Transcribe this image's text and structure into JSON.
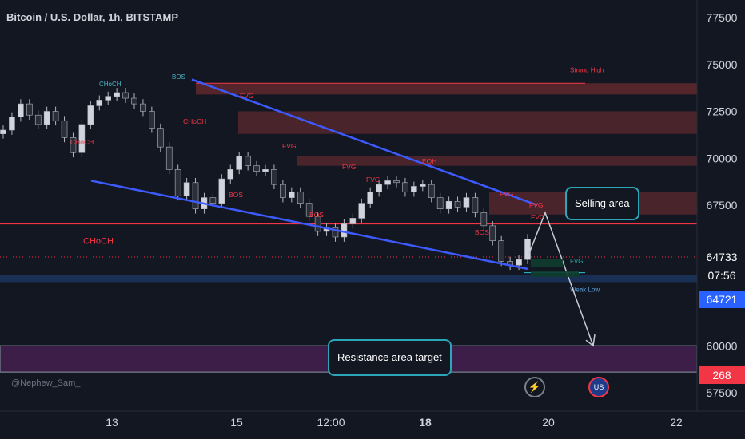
{
  "header": {
    "title": "Bitcoin / U.S. Dollar, 1h, BITSTAMP"
  },
  "watermark": "@Nephew_Sam_",
  "colors": {
    "background": "#131722",
    "bull": "#d1d4dc",
    "bear": "#2a2e39",
    "channel": "#3d5afe",
    "red": "#f23645",
    "teal": "#26a69a",
    "zone": "#5d2a2f",
    "purple": "#3d1e48",
    "label_blue": "#2962ff"
  },
  "chart_data": {
    "type": "candlestick",
    "title": "Bitcoin / U.S. Dollar, 1h, BITSTAMP",
    "ylim": [
      57500,
      77500
    ],
    "yticks": [
      "77500",
      "75000",
      "72500",
      "70000",
      "67500",
      "60000",
      "57500"
    ],
    "xticks": [
      "13",
      "15",
      "12:00",
      "18",
      "20",
      "22"
    ],
    "price_badges": [
      {
        "text": "64733",
        "color": "#131722"
      },
      {
        "text": "07:56",
        "color": "#131722"
      },
      {
        "text": "64721",
        "color": "#2962ff"
      },
      {
        "text": "268",
        "color": "#f23645"
      }
    ],
    "price_path": [
      71500,
      72200,
      72900,
      72300,
      71800,
      72500,
      72000,
      71100,
      70300,
      71800,
      72800,
      73100,
      73300,
      73500,
      73200,
      72900,
      72500,
      71600,
      70600,
      69400,
      68000,
      68700,
      67300,
      67900,
      67600,
      68900,
      69400,
      70100,
      69600,
      69300,
      69400,
      68600,
      67900,
      68200,
      67600,
      66900,
      66100,
      66300,
      65800,
      66500,
      66800,
      67600,
      68200,
      68600,
      68800,
      68700,
      68200,
      68500,
      68600,
      67900,
      67300,
      67700,
      67400,
      67900,
      67100,
      66400,
      65600,
      64500,
      64300,
      64600,
      65700
    ],
    "zones": [
      {
        "label": "Strong High",
        "low": 73400,
        "high": 74000
      },
      {
        "label": "FVG",
        "low": 71300,
        "high": 72500
      },
      {
        "label": "FVG",
        "low": 69600,
        "high": 70100
      },
      {
        "label": "FVG",
        "low": 67000,
        "high": 68200
      },
      {
        "label": "Weak Low",
        "low": 63400,
        "high": 63800
      }
    ],
    "labels": {
      "choch": "CHoCH",
      "bos": "BOS",
      "fvg": "FVG",
      "eqh": "EQH",
      "strong_high": "Strong High",
      "weak_low": "Weak Low"
    },
    "callouts": {
      "selling": "Selling area",
      "target": "Resistance area target"
    }
  }
}
